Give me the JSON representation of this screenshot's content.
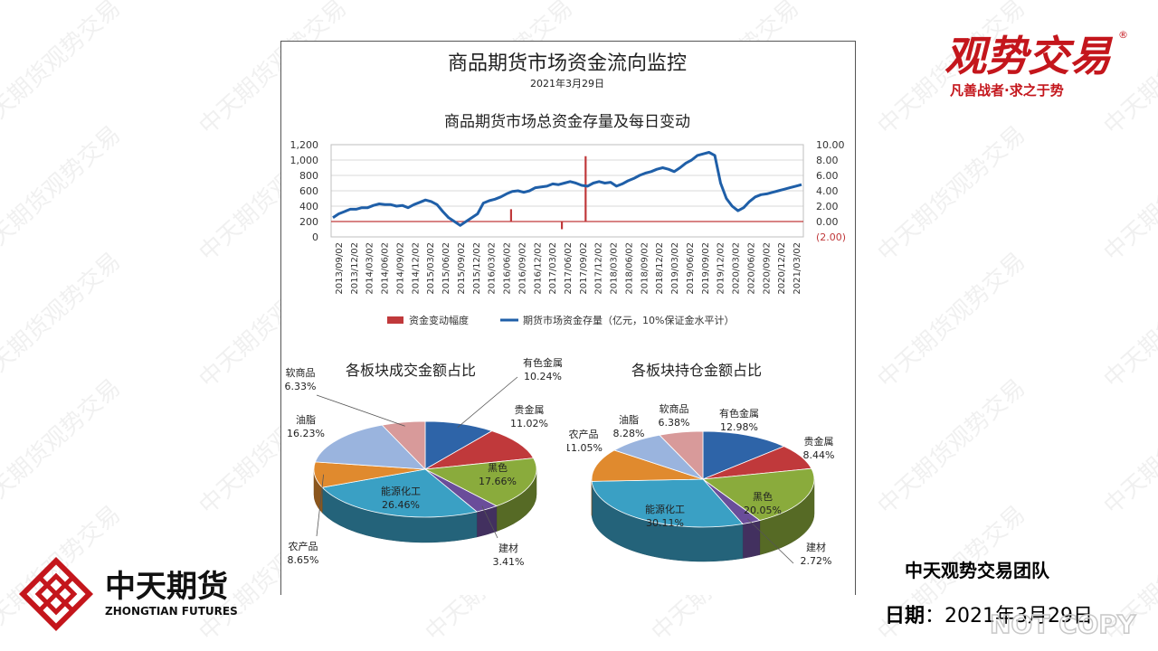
{
  "header": {
    "title": "商品期货市场资金流向监控",
    "date": "2021年3月29日",
    "subtitle": "商品期货市场总资金存量及每日变动"
  },
  "chart_data": [
    {
      "type": "line",
      "title": "商品期货市场总资金存量及每日变动",
      "x_ticks": [
        "2013/09/02",
        "2013/12/02",
        "2014/03/02",
        "2014/06/02",
        "2014/09/02",
        "2014/12/02",
        "2015/03/02",
        "2015/06/02",
        "2015/09/02",
        "2015/12/02",
        "2016/03/02",
        "2016/06/02",
        "2016/09/02",
        "2016/12/02",
        "2017/03/02",
        "2017/06/02",
        "2017/09/02",
        "2017/12/02",
        "2018/03/02",
        "2018/06/02",
        "2018/09/02",
        "2018/12/02",
        "2019/03/02",
        "2019/06/02",
        "2019/09/02",
        "2019/12/02",
        "2020/03/02",
        "2020/06/02",
        "2020/09/02",
        "2020/12/02",
        "2021/03/02"
      ],
      "y_left": {
        "ticks": [
          "0",
          "200",
          "400",
          "600",
          "800",
          "1,000",
          "1,200"
        ],
        "range": [
          0,
          1200
        ]
      },
      "y_right": {
        "ticks": [
          "(2.00)",
          "0.00",
          "2.00",
          "4.00",
          "6.00",
          "8.00",
          "10.00"
        ],
        "range": [
          -2,
          10
        ]
      },
      "grid": true,
      "legend_position": "bottom",
      "series": [
        {
          "name": "期货市场资金存量（亿元，10%保证金水平计）",
          "axis": "left",
          "color": "#1f5fa8",
          "values": [
            250,
            300,
            330,
            360,
            360,
            380,
            380,
            410,
            430,
            420,
            420,
            400,
            410,
            380,
            420,
            450,
            480,
            460,
            420,
            330,
            250,
            200,
            150,
            200,
            250,
            300,
            440,
            470,
            490,
            520,
            560,
            590,
            600,
            580,
            600,
            640,
            650,
            660,
            690,
            680,
            700,
            720,
            700,
            670,
            660,
            700,
            720,
            700,
            710,
            660,
            690,
            730,
            760,
            800,
            830,
            850,
            880,
            900,
            880,
            850,
            900,
            960,
            1000,
            1060,
            1080,
            1100,
            1060,
            700,
            500,
            400,
            340,
            380,
            460,
            520,
            550,
            560,
            580,
            600,
            620,
            640,
            660,
            680
          ]
        },
        {
          "name": "资金变动幅度",
          "axis": "right",
          "color": "#c0393b",
          "spikes": [
            {
              "x": "2016/07/01",
              "value": 1.6
            },
            {
              "x": "2017/05/01",
              "value": -1.0
            },
            {
              "x": "2017/09/20",
              "value": 8.5
            }
          ]
        }
      ]
    },
    {
      "type": "pie",
      "title": "各板块成交金额占比",
      "slices": [
        {
          "label": "有色金属",
          "value": 10.24,
          "display": "10.24%",
          "color": "#2e64a8"
        },
        {
          "label": "贵金属",
          "value": 11.02,
          "display": "11.02%",
          "color": "#c0393b"
        },
        {
          "label": "黑色",
          "value": 17.66,
          "display": "17.66%",
          "color": "#8aab3c"
        },
        {
          "label": "建材",
          "value": 3.41,
          "display": "3.41%",
          "color": "#6a4d9a"
        },
        {
          "label": "能源化工",
          "value": 26.46,
          "display": "26.46%",
          "color": "#3aa0c4"
        },
        {
          "label": "农产品",
          "value": 8.65,
          "display": "8.65%",
          "color": "#e08a2e"
        },
        {
          "label": "油脂",
          "value": 16.23,
          "display": "16.23%",
          "color": "#9ab4de"
        },
        {
          "label": "软商品",
          "value": 6.33,
          "display": "6.33%",
          "color": "#d89a9a"
        }
      ]
    },
    {
      "type": "pie",
      "title": "各板块持仓金额占比",
      "slices": [
        {
          "label": "有色金属",
          "value": 12.98,
          "display": "12.98%",
          "color": "#2e64a8"
        },
        {
          "label": "贵金属",
          "value": 8.44,
          "display": "8.44%",
          "color": "#c0393b"
        },
        {
          "label": "黑色",
          "value": 20.05,
          "display": "20.05%",
          "color": "#8aab3c"
        },
        {
          "label": "建材",
          "value": 2.72,
          "display": "2.72%",
          "color": "#6a4d9a"
        },
        {
          "label": "能源化工",
          "value": 30.11,
          "display": "30.11%",
          "color": "#3aa0c4"
        },
        {
          "label": "农产品",
          "value": 11.05,
          "display": "11.05%",
          "color": "#e08a2e"
        },
        {
          "label": "油脂",
          "value": 8.28,
          "display": "8.28%",
          "color": "#9ab4de"
        },
        {
          "label": "软商品",
          "value": 6.38,
          "display": "6.38%",
          "color": "#d89a9a"
        }
      ]
    }
  ],
  "pie1_title": "各板块成交金额占比",
  "pie2_title": "各板块持仓金额占比",
  "brand": {
    "name": "观势交易",
    "slogan": "凡善战者·求之于势",
    "mark": "®"
  },
  "logo": {
    "cn": "中天期货",
    "en": "ZHONGTIAN FUTURES"
  },
  "footer": {
    "team": "中天观势交易团队",
    "date_label": "日期",
    "date_sep": "：",
    "date_value": "2021年3月29日"
  },
  "watermark": {
    "text": "中天期货观势交易"
  },
  "corner_mark": "NOT COPY"
}
